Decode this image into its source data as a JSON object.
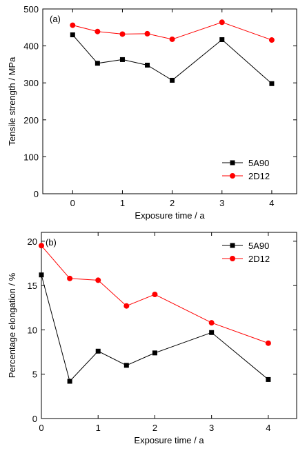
{
  "chart_data": [
    {
      "type": "line",
      "panel_label": "(a)",
      "xlabel": "Exposure time / a",
      "ylabel": "Tensile strength / MPa",
      "xlim": [
        -0.6,
        4.5
      ],
      "ylim": [
        0,
        500
      ],
      "xticks": [
        0,
        1,
        2,
        3,
        4
      ],
      "yticks": [
        0,
        100,
        200,
        300,
        400,
        500
      ],
      "grid": false,
      "legend_position": "bottom-right",
      "series": [
        {
          "name": "5A90",
          "color": "#000000",
          "marker": "square",
          "x": [
            0,
            0.5,
            1,
            1.5,
            2,
            3,
            4
          ],
          "y": [
            430,
            353,
            363,
            348,
            307,
            417,
            298
          ]
        },
        {
          "name": "2D12",
          "color": "#ff0000",
          "marker": "circle",
          "x": [
            0,
            0.5,
            1,
            1.5,
            2,
            3,
            4
          ],
          "y": [
            456,
            439,
            432,
            433,
            418,
            464,
            416
          ]
        }
      ]
    },
    {
      "type": "line",
      "panel_label": "(b)",
      "xlabel": "Exposure time / a",
      "ylabel": "Percentage elongation / %",
      "xlim": [
        0,
        4.5
      ],
      "ylim": [
        0,
        21
      ],
      "xticks": [
        0,
        1,
        2,
        3,
        4
      ],
      "yticks": [
        0,
        5,
        10,
        15,
        20
      ],
      "grid": false,
      "legend_position": "top-right",
      "series": [
        {
          "name": "5A90",
          "color": "#000000",
          "marker": "square",
          "x": [
            0,
            0.5,
            1,
            1.5,
            2,
            3,
            4
          ],
          "y": [
            16.2,
            4.2,
            7.6,
            6.0,
            7.4,
            9.7,
            4.4
          ]
        },
        {
          "name": "2D12",
          "color": "#ff0000",
          "marker": "circle",
          "x": [
            0,
            0.5,
            1,
            1.5,
            2,
            3,
            4
          ],
          "y": [
            19.5,
            15.8,
            15.6,
            12.7,
            14.0,
            10.8,
            8.5
          ]
        }
      ]
    }
  ]
}
